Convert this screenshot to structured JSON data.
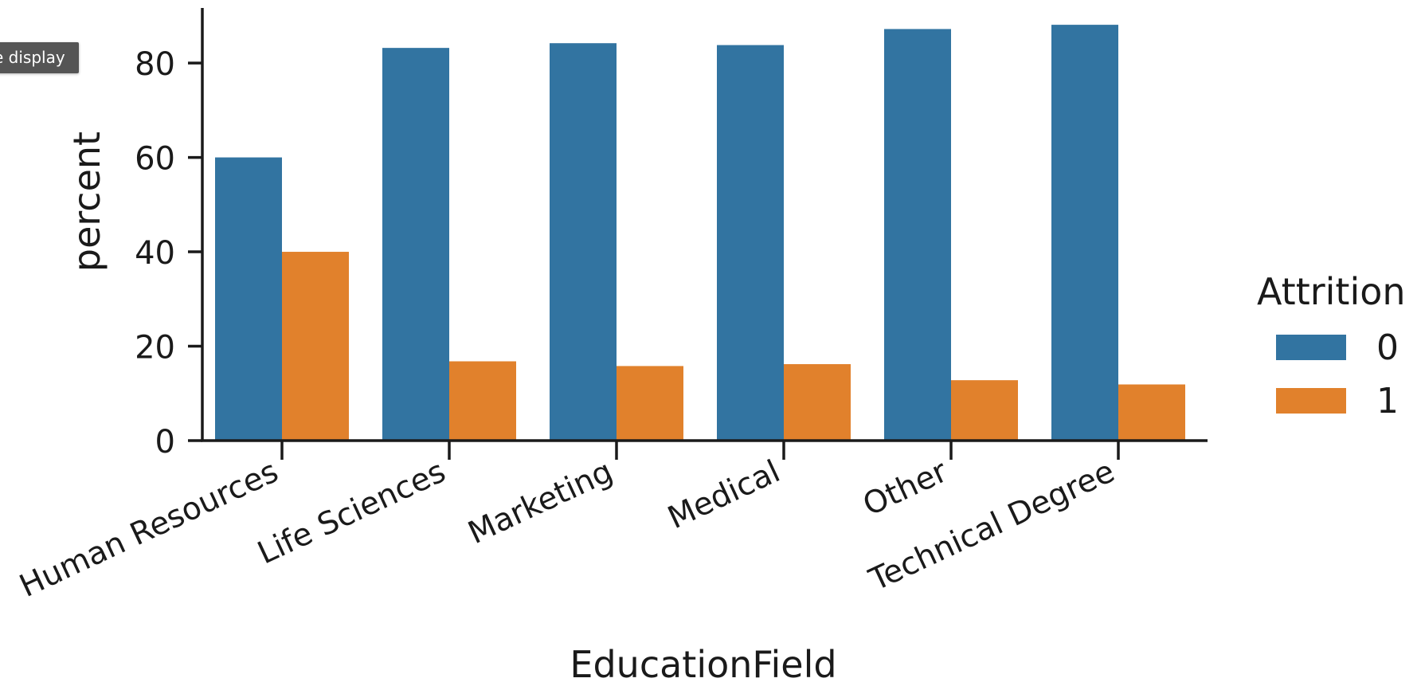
{
  "tooltip": {
    "text": "e display"
  },
  "colors": {
    "series0": "#3274a1",
    "series1": "#e1812c",
    "axis": "#1a1a1a"
  },
  "chart_data": {
    "type": "bar",
    "title": "",
    "xlabel": "EducationField",
    "ylabel": "percent",
    "ylim": [
      0,
      92
    ],
    "yticks": [
      0,
      20,
      40,
      60,
      80
    ],
    "grid": false,
    "legend": {
      "title": "Attrition",
      "placement": "right"
    },
    "categories": [
      "Human Resources",
      "Life Sciences",
      "Marketing",
      "Medical",
      "Other",
      "Technical Degree"
    ],
    "series": [
      {
        "name": "0",
        "values": [
          60.0,
          83.2,
          84.2,
          83.8,
          87.2,
          88.1
        ]
      },
      {
        "name": "1",
        "values": [
          40.0,
          16.8,
          15.8,
          16.2,
          12.8,
          11.9
        ]
      }
    ]
  }
}
